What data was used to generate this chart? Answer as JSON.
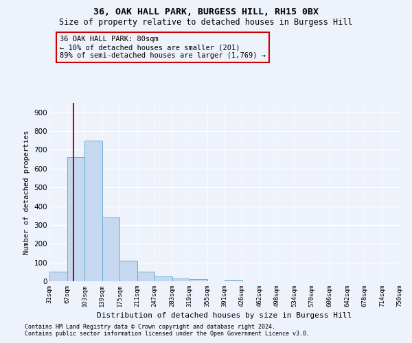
{
  "title1": "36, OAK HALL PARK, BURGESS HILL, RH15 0BX",
  "title2": "Size of property relative to detached houses in Burgess Hill",
  "xlabel": "Distribution of detached houses by size in Burgess Hill",
  "ylabel": "Number of detached properties",
  "footnote1": "Contains HM Land Registry data © Crown copyright and database right 2024.",
  "footnote2": "Contains public sector information licensed under the Open Government Licence v3.0.",
  "bin_edges": [
    31,
    67,
    103,
    139,
    175,
    211,
    247,
    283,
    319,
    355,
    391,
    426,
    462,
    498,
    534,
    570,
    606,
    642,
    678,
    714,
    750
  ],
  "bar_heights": [
    50,
    660,
    750,
    340,
    108,
    50,
    25,
    15,
    12,
    0,
    8,
    0,
    0,
    0,
    0,
    0,
    0,
    0,
    0,
    0
  ],
  "bar_color": "#c5d8f0",
  "bar_edge_color": "#6aafd6",
  "property_size": 80,
  "property_line_color": "#cc0000",
  "annotation_line1": "36 OAK HALL PARK: 80sqm",
  "annotation_line2": "← 10% of detached houses are smaller (201)",
  "annotation_line3": "89% of semi-detached houses are larger (1,769) →",
  "annotation_box_color": "#cc0000",
  "ylim": [
    0,
    950
  ],
  "yticks": [
    0,
    100,
    200,
    300,
    400,
    500,
    600,
    700,
    800,
    900
  ],
  "background_color": "#eef2fb",
  "grid_color": "#ffffff",
  "title_fontsize": 9.5,
  "subtitle_fontsize": 8.5
}
